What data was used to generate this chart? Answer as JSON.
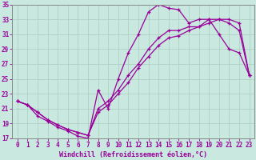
{
  "xlabel": "Windchill (Refroidissement éolien,°C)",
  "ylabel": "",
  "xlim": [
    -0.5,
    23.5
  ],
  "ylim": [
    17,
    35
  ],
  "xticks": [
    0,
    1,
    2,
    3,
    4,
    5,
    6,
    7,
    8,
    9,
    10,
    11,
    12,
    13,
    14,
    15,
    16,
    17,
    18,
    19,
    20,
    21,
    22,
    23
  ],
  "yticks": [
    17,
    19,
    21,
    23,
    25,
    27,
    29,
    31,
    33,
    35
  ],
  "bg_color": "#c8e8e0",
  "line_color": "#990099",
  "line1_x": [
    0,
    1,
    2,
    3,
    4,
    5,
    6,
    7,
    8,
    9,
    10,
    11,
    12,
    13,
    14,
    15,
    16,
    17,
    18,
    19,
    20,
    21,
    22,
    23
  ],
  "line1_y": [
    22.0,
    21.5,
    20.0,
    19.3,
    18.5,
    18.0,
    17.3,
    17.0,
    23.5,
    21.0,
    25.0,
    28.5,
    31.0,
    34.0,
    35.0,
    34.5,
    34.3,
    32.5,
    33.0,
    33.0,
    31.0,
    29.0,
    28.5,
    25.5
  ],
  "line2_x": [
    0,
    1,
    2,
    3,
    4,
    5,
    6,
    7,
    8,
    9,
    10,
    11,
    12,
    13,
    14,
    15,
    16,
    17,
    18,
    19,
    20,
    21,
    22,
    23
  ],
  "line2_y": [
    22.0,
    21.5,
    20.5,
    19.5,
    18.8,
    18.2,
    17.8,
    17.4,
    20.5,
    21.5,
    23.0,
    24.5,
    26.5,
    28.0,
    29.5,
    30.5,
    30.8,
    31.5,
    32.0,
    32.5,
    33.0,
    33.0,
    32.5,
    25.5
  ],
  "line3_x": [
    0,
    1,
    2,
    3,
    4,
    5,
    6,
    7,
    8,
    9,
    10,
    11,
    12,
    13,
    14,
    15,
    16,
    17,
    18,
    19,
    20,
    21,
    22,
    23
  ],
  "line3_y": [
    22.0,
    21.5,
    20.5,
    19.5,
    18.8,
    18.2,
    17.8,
    17.4,
    21.0,
    22.0,
    23.5,
    25.5,
    27.0,
    29.0,
    30.5,
    31.5,
    31.5,
    32.0,
    32.0,
    33.0,
    33.0,
    32.5,
    31.5,
    25.5
  ],
  "grid_color": "#aaccbb",
  "spine_color": "#888888",
  "tick_fontsize": 5.5,
  "xlabel_fontsize": 6.0
}
